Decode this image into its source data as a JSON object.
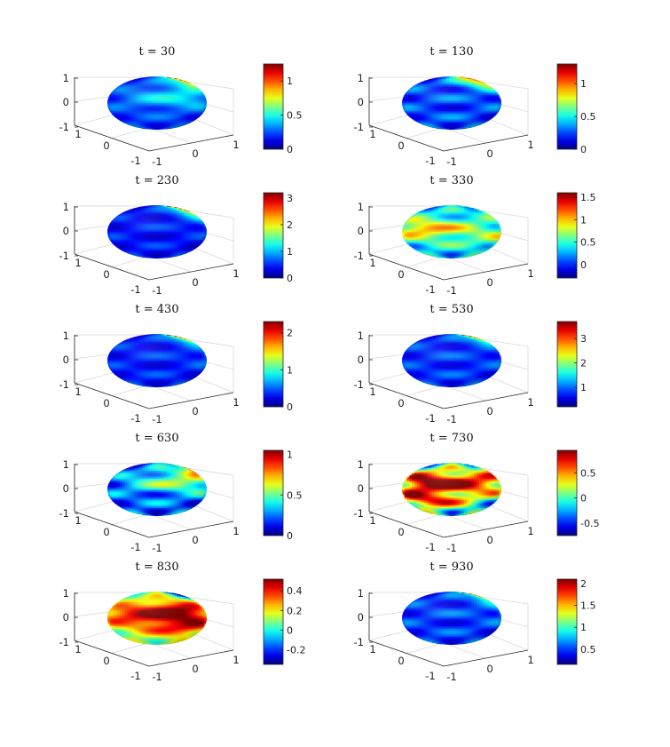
{
  "chart_data": [
    {
      "type": "surface3d",
      "title": "t = 30",
      "t": 30,
      "axes": {
        "x_ticks": [
          "-1",
          "0",
          "1"
        ],
        "y_ticks": [
          "-1",
          "0",
          "1"
        ],
        "z_ticks": [
          "-1",
          "0",
          "1"
        ]
      },
      "colorbar": {
        "range": [
          0,
          1.25
        ],
        "ticks": [
          {
            "value": 0,
            "label": "0"
          },
          {
            "value": 0.5,
            "label": "0.5"
          },
          {
            "value": 1,
            "label": "1"
          }
        ]
      },
      "surface_pattern": {
        "base": 0.22,
        "bands": 0.1,
        "spots": [
          {
            "a": 98,
            "e": 0.95,
            "v": 1.2,
            "s": 0.06
          },
          {
            "a": 30,
            "e": 0.2,
            "v": 0.45,
            "s": 0.09
          }
        ]
      }
    },
    {
      "type": "surface3d",
      "title": "t = 130",
      "t": 130,
      "axes": {
        "x_ticks": [
          "-1",
          "0",
          "1"
        ],
        "y_ticks": [
          "-1",
          "0",
          "1"
        ],
        "z_ticks": [
          "-1",
          "0",
          "1"
        ]
      },
      "colorbar": {
        "range": [
          0,
          1.3
        ],
        "ticks": [
          {
            "value": 0,
            "label": "0"
          },
          {
            "value": 0.5,
            "label": "0.5"
          },
          {
            "value": 1,
            "label": "1"
          }
        ]
      },
      "surface_pattern": {
        "base": 0.25,
        "bands": 0.15,
        "spots": [
          {
            "a": 70,
            "e": 0.95,
            "v": 1.1,
            "s": 0.05
          },
          {
            "a": 150,
            "e": 0.6,
            "v": 0.6,
            "s": 0.09
          }
        ]
      }
    },
    {
      "type": "surface3d",
      "title": "t = 230",
      "t": 230,
      "axes": {
        "x_ticks": [
          "-1",
          "0",
          "1"
        ],
        "y_ticks": [
          "-1",
          "0",
          "1"
        ],
        "z_ticks": [
          "-1",
          "0",
          "1"
        ]
      },
      "colorbar": {
        "range": [
          0,
          3.2
        ],
        "ticks": [
          {
            "value": 0,
            "label": "0"
          },
          {
            "value": 1,
            "label": "1"
          },
          {
            "value": 2,
            "label": "2"
          },
          {
            "value": 3,
            "label": "3"
          }
        ]
      },
      "surface_pattern": {
        "base": 0.45,
        "bands": 0.25,
        "spots": [
          {
            "a": 95,
            "e": 0.95,
            "v": 3.0,
            "s": 0.05
          },
          {
            "a": 140,
            "e": 0.4,
            "v": 1.2,
            "s": 0.09
          }
        ]
      }
    },
    {
      "type": "surface3d",
      "title": "t = 330",
      "t": 330,
      "axes": {
        "x_ticks": [
          "-1",
          "0",
          "1"
        ],
        "y_ticks": [
          "-1",
          "0",
          "1"
        ],
        "z_ticks": [
          "-1",
          "0",
          "1"
        ]
      },
      "colorbar": {
        "range": [
          -0.3,
          1.6
        ],
        "ticks": [
          {
            "value": 0,
            "label": "0"
          },
          {
            "value": 0.5,
            "label": "0.5"
          },
          {
            "value": 1,
            "label": "1"
          },
          {
            "value": 1.5,
            "label": "1.5"
          }
        ]
      },
      "surface_pattern": {
        "base": 0.3,
        "bands": 0.3,
        "spots": [
          {
            "a": 140,
            "e": 0.85,
            "v": 1.5,
            "s": 0.06
          },
          {
            "a": -40,
            "e": 0.1,
            "v": 1.0,
            "s": 0.1
          },
          {
            "a": 110,
            "e": -0.2,
            "v": 0.8,
            "s": 0.1
          }
        ]
      }
    },
    {
      "type": "surface3d",
      "title": "t = 430",
      "t": 430,
      "axes": {
        "x_ticks": [
          "-1",
          "0",
          "1"
        ],
        "y_ticks": [
          "-1",
          "0",
          "1"
        ],
        "z_ticks": [
          "-1",
          "0",
          "1"
        ]
      },
      "colorbar": {
        "range": [
          0,
          2.3
        ],
        "ticks": [
          {
            "value": 0,
            "label": "0"
          },
          {
            "value": 1,
            "label": "1"
          },
          {
            "value": 2,
            "label": "2"
          }
        ]
      },
      "surface_pattern": {
        "base": 0.35,
        "bands": 0.18,
        "spots": [
          {
            "a": 90,
            "e": 0.97,
            "v": 2.2,
            "s": 0.04
          },
          {
            "a": 160,
            "e": 0.2,
            "v": 1.0,
            "s": 0.1
          }
        ]
      }
    },
    {
      "type": "surface3d",
      "title": "t = 530",
      "t": 530,
      "axes": {
        "x_ticks": [
          "-1",
          "0",
          "1"
        ],
        "y_ticks": [
          "-1",
          "0",
          "1"
        ],
        "z_ticks": [
          "-1",
          "0",
          "1"
        ]
      },
      "colorbar": {
        "range": [
          0.2,
          3.7
        ],
        "ticks": [
          {
            "value": 1,
            "label": "1"
          },
          {
            "value": 2,
            "label": "2"
          },
          {
            "value": 3,
            "label": "3"
          }
        ]
      },
      "surface_pattern": {
        "base": 0.8,
        "bands": 0.3,
        "spots": [
          {
            "a": 90,
            "e": 0.97,
            "v": 3.5,
            "s": 0.04
          },
          {
            "a": 170,
            "e": 0.1,
            "v": 1.8,
            "s": 0.08
          }
        ]
      }
    },
    {
      "type": "surface3d",
      "title": "t = 630",
      "t": 630,
      "axes": {
        "x_ticks": [
          "-1",
          "0",
          "1"
        ],
        "y_ticks": [
          "-1",
          "0",
          "1"
        ],
        "z_ticks": [
          "-1",
          "0",
          "1"
        ]
      },
      "colorbar": {
        "range": [
          0,
          1.05
        ],
        "ticks": [
          {
            "value": 0,
            "label": "0"
          },
          {
            "value": 0.5,
            "label": "0.5"
          },
          {
            "value": 1,
            "label": "1"
          }
        ]
      },
      "surface_pattern": {
        "base": 0.22,
        "bands": 0.18,
        "spots": [
          {
            "a": 120,
            "e": 0.85,
            "v": 1.0,
            "s": 0.07
          },
          {
            "a": 40,
            "e": 0.3,
            "v": 0.55,
            "s": 0.1
          }
        ]
      }
    },
    {
      "type": "surface3d",
      "title": "t = 730",
      "t": 730,
      "axes": {
        "x_ticks": [
          "-1",
          "0",
          "1"
        ],
        "y_ticks": [
          "-1",
          "0",
          "1"
        ],
        "z_ticks": [
          "-1",
          "0",
          "1"
        ]
      },
      "colorbar": {
        "range": [
          -0.75,
          0.95
        ],
        "ticks": [
          {
            "value": -0.5,
            "label": "-0.5"
          },
          {
            "value": 0,
            "label": "0"
          },
          {
            "value": 0.5,
            "label": "0.5"
          }
        ]
      },
      "surface_pattern": {
        "base": -0.2,
        "bands": 0.45,
        "spots": [
          {
            "a": -30,
            "e": 0.35,
            "v": 0.8,
            "s": 0.08
          },
          {
            "a": -40,
            "e": -0.35,
            "v": 0.7,
            "s": 0.08
          },
          {
            "a": 130,
            "e": 0.8,
            "v": 0.9,
            "s": 0.06
          },
          {
            "a": 60,
            "e": 0.2,
            "v": 0.4,
            "s": 0.1
          }
        ]
      }
    },
    {
      "type": "surface3d",
      "title": "t = 830",
      "t": 830,
      "axes": {
        "x_ticks": [
          "-1",
          "0",
          "1"
        ],
        "y_ticks": [
          "-1",
          "0",
          "1"
        ],
        "z_ticks": [
          "-1",
          "0",
          "1"
        ]
      },
      "colorbar": {
        "range": [
          -0.35,
          0.52
        ],
        "ticks": [
          {
            "value": -0.2,
            "label": "-0.2"
          },
          {
            "value": 0,
            "label": "0"
          },
          {
            "value": 0.2,
            "label": "0.2"
          },
          {
            "value": 0.4,
            "label": "0.4"
          }
        ]
      },
      "surface_pattern": {
        "base": 0.08,
        "bands": 0.12,
        "spots": [
          {
            "a": 30,
            "e": 0.3,
            "v": 0.45,
            "s": 0.08
          },
          {
            "a": 40,
            "e": -0.3,
            "v": 0.4,
            "s": 0.08
          },
          {
            "a": 90,
            "e": 0.97,
            "v": -0.3,
            "s": 0.04
          },
          {
            "a": -60,
            "e": 0.1,
            "v": 0.3,
            "s": 0.1
          }
        ]
      }
    },
    {
      "type": "surface3d",
      "title": "t = 930",
      "t": 930,
      "axes": {
        "x_ticks": [
          "-1",
          "0",
          "1"
        ],
        "y_ticks": [
          "-1",
          "0",
          "1"
        ],
        "z_ticks": [
          "-1",
          "0",
          "1"
        ]
      },
      "colorbar": {
        "range": [
          0.15,
          2.1
        ],
        "ticks": [
          {
            "value": 0.5,
            "label": "0.5"
          },
          {
            "value": 1,
            "label": "1"
          },
          {
            "value": 1.5,
            "label": "1.5"
          },
          {
            "value": 2,
            "label": "2"
          }
        ]
      },
      "surface_pattern": {
        "base": 0.5,
        "bands": 0.2,
        "spots": [
          {
            "a": 95,
            "e": 0.97,
            "v": 2.0,
            "s": 0.04
          },
          {
            "a": 160,
            "e": 0.3,
            "v": 1.1,
            "s": 0.1
          }
        ]
      }
    }
  ],
  "colormap": "jet"
}
